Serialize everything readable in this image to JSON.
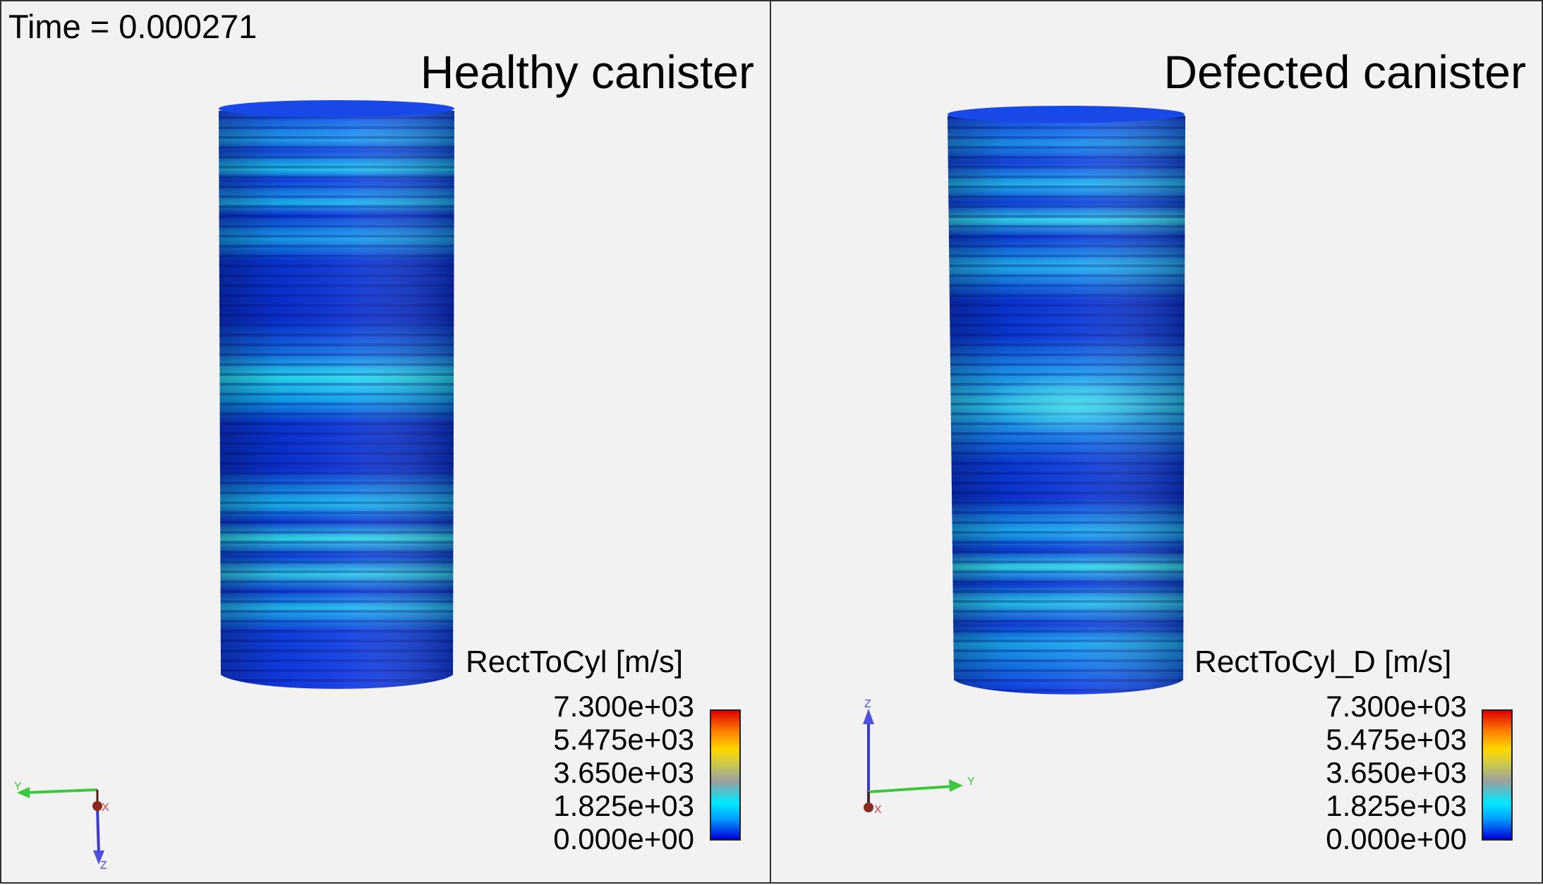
{
  "time_label": "Time = 0.000271",
  "left": {
    "title": "Healthy canister",
    "legend": {
      "title": "RectToCyl [m/s]",
      "ticks": [
        "7.300e+03",
        "5.475e+03",
        "3.650e+03",
        "1.825e+03",
        "0.000e+00"
      ]
    },
    "axes": {
      "labels": [
        "Y",
        "X",
        "Z"
      ]
    }
  },
  "right": {
    "title": "Defected canister",
    "legend": {
      "title": "RectToCyl_D [m/s]",
      "ticks": [
        "7.300e+03",
        "5.475e+03",
        "3.650e+03",
        "1.825e+03",
        "0.000e+00"
      ]
    },
    "axes": {
      "labels": [
        "Z",
        "Y",
        "X"
      ]
    }
  },
  "colors": {
    "background": "#f2f2f2",
    "low": "#0000d8",
    "mid": "#00e8ff",
    "high": "#e00000"
  }
}
